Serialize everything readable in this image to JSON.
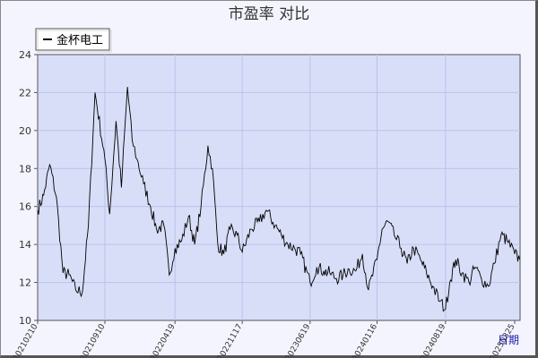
{
  "chart_data": {
    "type": "line",
    "title": "市盈率  对比",
    "xlabel": "日期",
    "ylabel": "",
    "ylim": [
      10,
      24
    ],
    "yticks": [
      10,
      12,
      14,
      16,
      18,
      20,
      22,
      24
    ],
    "x_tick_labels": [
      "20210210",
      "20210910",
      "20220419",
      "20221117",
      "20230619",
      "20240116",
      "20240819",
      "20250325"
    ],
    "grid": true,
    "legend_position": "top-left",
    "colors": {
      "line": "#000000",
      "plot_bg": "#d9def8",
      "grid": "#b8c4ec",
      "page_bg": "#f4f4fe",
      "xlabel": "#1a1aa8"
    },
    "series": [
      {
        "name": "金杯电工",
        "x": [
          "20210210",
          "20210301",
          "20210320",
          "20210410",
          "20210501",
          "20210520",
          "20210610",
          "20210701",
          "20210720",
          "20210810",
          "20210910",
          "20210925",
          "20211015",
          "20211101",
          "20211120",
          "20211205",
          "20211220",
          "20220110",
          "20220201",
          "20220220",
          "20220315",
          "20220401",
          "20220419",
          "20220510",
          "20220601",
          "20220620",
          "20220710",
          "20220801",
          "20220815",
          "20220901",
          "20220920",
          "20221010",
          "20221101",
          "20221117",
          "20221215",
          "20230110",
          "20230201",
          "20230301",
          "20230320",
          "20230410",
          "20230501",
          "20230520",
          "20230619",
          "20230710",
          "20230801",
          "20230820",
          "20230910",
          "20231001",
          "20231020",
          "20231110",
          "20231201",
          "20231220",
          "20240116",
          "20240201",
          "20240220",
          "20240310",
          "20240401",
          "20240420",
          "20240510",
          "20240601",
          "20240620",
          "20240710",
          "20240801",
          "20240819",
          "20240901",
          "20240920",
          "20241010",
          "20241101",
          "20241120",
          "20241210",
          "20250101",
          "20250120",
          "20250210",
          "20250301",
          "20250325",
          "20250410"
        ],
        "values": [
          15.8,
          16.6,
          18.2,
          16.5,
          12.5,
          12.4,
          11.6,
          11.5,
          15.0,
          22.0,
          18.5,
          15.6,
          20.5,
          17.0,
          22.3,
          19.5,
          18.5,
          17.2,
          16.0,
          14.8,
          15.0,
          12.4,
          13.8,
          14.2,
          15.5,
          14.0,
          16.0,
          19.2,
          18.0,
          14.0,
          13.5,
          14.8,
          14.5,
          13.6,
          14.8,
          15.2,
          15.8,
          15.0,
          14.5,
          14.0,
          13.8,
          13.5,
          12.0,
          12.8,
          12.6,
          12.5,
          12.2,
          12.4,
          12.7,
          12.6,
          13.5,
          11.6,
          13.2,
          14.8,
          15.2,
          14.5,
          13.8,
          13.0,
          13.8,
          13.2,
          12.5,
          11.8,
          11.0,
          10.6,
          12.0,
          13.2,
          12.5,
          12.0,
          12.8,
          12.2,
          11.8,
          13.0,
          14.5,
          14.2,
          13.5,
          13.2
        ]
      }
    ]
  }
}
